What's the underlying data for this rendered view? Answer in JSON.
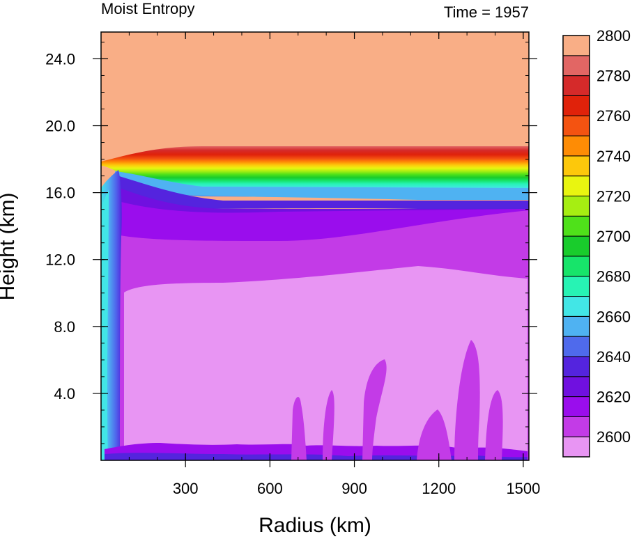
{
  "chart_data": {
    "type": "heatmap",
    "title_left": "Moist Entropy",
    "title_right": "Time = 1957",
    "xlabel": "Radius (km)",
    "ylabel": "Height (km)",
    "xlim": [
      0,
      1520
    ],
    "ylim": [
      0,
      25.6
    ],
    "x_ticks": [
      {
        "value": 300,
        "label": "300"
      },
      {
        "value": 600,
        "label": "600"
      },
      {
        "value": 900,
        "label": "900"
      },
      {
        "value": 1200,
        "label": "1200"
      },
      {
        "value": 1500,
        "label": "1500"
      }
    ],
    "y_ticks": [
      {
        "value": 4,
        "label": "4.0"
      },
      {
        "value": 8,
        "label": "8.0"
      },
      {
        "value": 12,
        "label": "12.0"
      },
      {
        "value": 16,
        "label": "16.0"
      },
      {
        "value": 20,
        "label": "20.0"
      },
      {
        "value": 24,
        "label": "24.0"
      }
    ],
    "x_minor_step": 100,
    "y_minor_step": 1,
    "colorbar": {
      "min": 2590,
      "step": 10,
      "colors": [
        "#e895f3",
        "#c33be7",
        "#9a0ded",
        "#7010e0",
        "#5424de",
        "#4f6aec",
        "#4fb2f2",
        "#42e6e6",
        "#27f3b4",
        "#17e46a",
        "#19cc2c",
        "#4fe11a",
        "#a6ee12",
        "#e9f510",
        "#fdc80b",
        "#fe8c05",
        "#f45311",
        "#e0220a",
        "#d52a2a",
        "#e26664",
        "#f9ae86"
      ],
      "labels": [
        {
          "value": 2600,
          "label": "2600"
        },
        {
          "value": 2620,
          "label": "2620"
        },
        {
          "value": 2640,
          "label": "2640"
        },
        {
          "value": 2660,
          "label": "2660"
        },
        {
          "value": 2680,
          "label": "2680"
        },
        {
          "value": 2700,
          "label": "2700"
        },
        {
          "value": 2720,
          "label": "2720"
        },
        {
          "value": 2740,
          "label": "2740"
        },
        {
          "value": 2760,
          "label": "2760"
        },
        {
          "value": 2780,
          "label": "2780"
        },
        {
          "value": 2800,
          "label": "2800"
        }
      ]
    }
  }
}
